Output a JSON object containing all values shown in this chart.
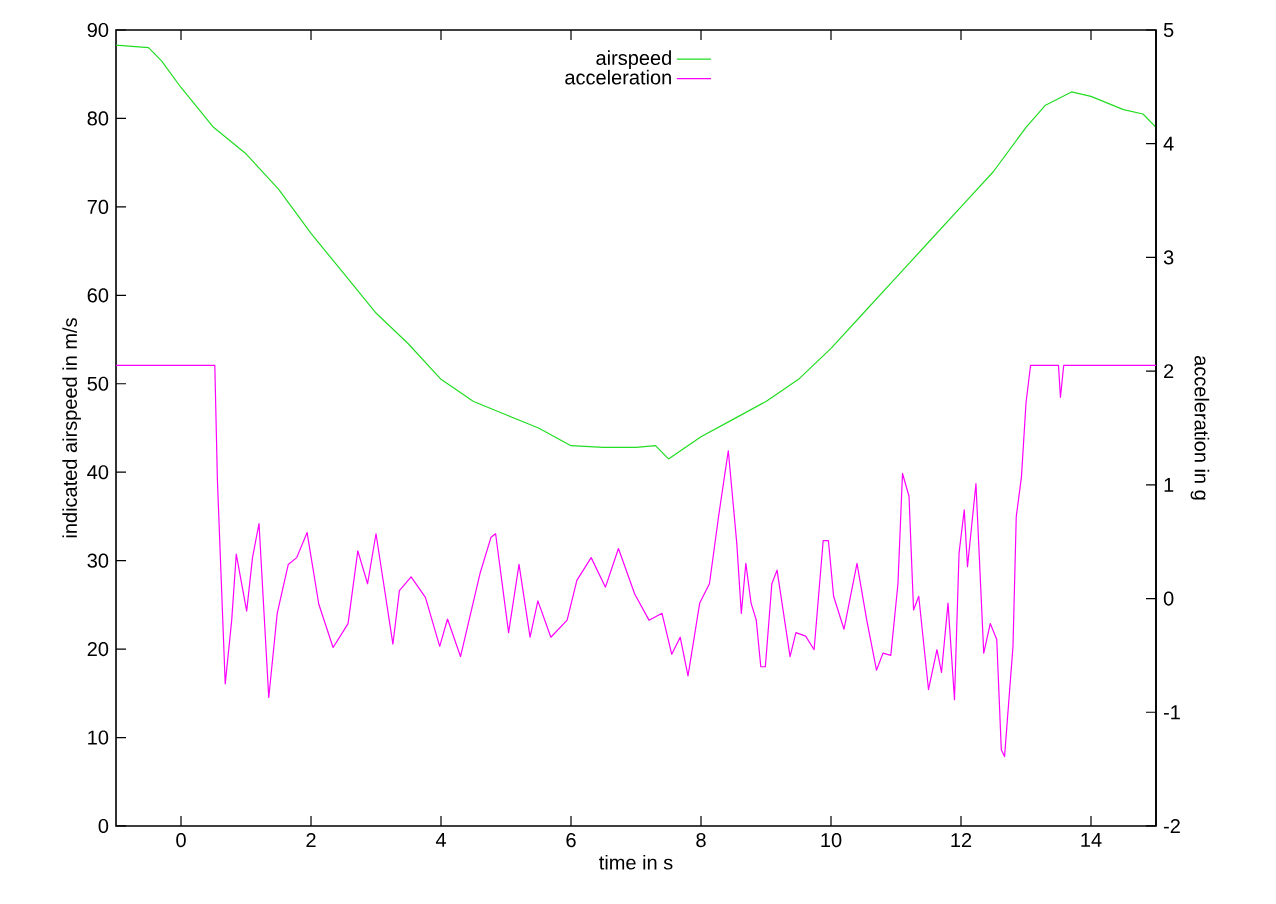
{
  "chart_data": {
    "type": "line",
    "xlabel": "time in s",
    "ylabel": "indicated airspeed in m/s",
    "y2label": "acceleration in g",
    "xlim": [
      -1,
      15
    ],
    "xticks": [
      0,
      2,
      4,
      6,
      8,
      10,
      12,
      14
    ],
    "ylim": [
      0,
      90
    ],
    "yticks": [
      0,
      10,
      20,
      30,
      40,
      50,
      60,
      70,
      80,
      90
    ],
    "y2lim": [
      -2,
      5
    ],
    "y2ticks": [
      -2,
      -1,
      0,
      1,
      2,
      3,
      4,
      5
    ],
    "legend": "top",
    "grid": false,
    "marker": "none",
    "series": [
      {
        "name": "airspeed",
        "color": "#22dd22",
        "x": [
          -1,
          -0.5,
          -0.3,
          0,
          0.5,
          1,
          1.5,
          2,
          2.5,
          3,
          3.5,
          4,
          4.5,
          5,
          5.5,
          6,
          6.5,
          7,
          7.3,
          7.5,
          7.8,
          8,
          8.5,
          9,
          9.5,
          10,
          10.5,
          11,
          11.5,
          12,
          12.5,
          13,
          13.3,
          13.7,
          14,
          14.5,
          14.8,
          15
        ],
        "values": [
          88.3,
          88,
          86.5,
          83.5,
          79,
          76,
          72,
          67,
          62.5,
          58,
          54.5,
          50.5,
          48,
          46.5,
          45,
          43,
          42.8,
          42.8,
          43,
          41.5,
          43,
          44,
          46,
          48,
          50.5,
          54,
          58,
          62,
          66,
          70,
          74,
          79,
          81.5,
          83,
          82.5,
          81,
          80.5,
          79
        ]
      },
      {
        "name": "acceleration",
        "color": "#ff00ff",
        "axis": "y2",
        "x": [
          -1,
          0.52,
          0.56,
          0.68,
          0.78,
          0.85,
          1.01,
          1.1,
          1.2,
          1.35,
          1.48,
          1.65,
          1.78,
          1.94,
          2.12,
          2.34,
          2.57,
          2.72,
          2.87,
          3.0,
          3.26,
          3.36,
          3.54,
          3.76,
          3.98,
          4.1,
          4.3,
          4.6,
          4.77,
          4.84,
          5.04,
          5.2,
          5.37,
          5.49,
          5.69,
          5.94,
          6.09,
          6.31,
          6.53,
          6.73,
          6.98,
          7.2,
          7.4,
          7.55,
          7.68,
          7.8,
          7.98,
          8.13,
          8.27,
          8.36,
          8.42,
          8.55,
          8.62,
          8.69,
          8.77,
          8.85,
          8.92,
          8.99,
          9.09,
          9.17,
          9.37,
          9.46,
          9.61,
          9.74,
          9.88,
          9.96,
          10.04,
          10.2,
          10.4,
          10.55,
          10.7,
          10.8,
          10.92,
          11.03,
          11.1,
          11.2,
          11.27,
          11.35,
          11.5,
          11.63,
          11.7,
          11.8,
          11.9,
          11.97,
          12.05,
          12.1,
          12.23,
          12.35,
          12.45,
          12.55,
          12.62,
          12.67,
          12.8,
          12.85,
          12.93,
          13.0,
          13.07,
          13.5,
          13.53,
          13.58,
          15
        ],
        "values": [
          2.05,
          2.05,
          1.04,
          -0.75,
          -0.19,
          0.39,
          -0.11,
          0.36,
          0.66,
          -0.87,
          -0.13,
          0.3,
          0.36,
          0.58,
          -0.05,
          -0.43,
          -0.22,
          0.42,
          0.13,
          0.57,
          -0.4,
          0.07,
          0.19,
          0.01,
          -0.42,
          -0.18,
          -0.51,
          0.22,
          0.54,
          0.57,
          -0.3,
          0.3,
          -0.34,
          -0.02,
          -0.34,
          -0.19,
          0.16,
          0.36,
          0.1,
          0.44,
          0.04,
          -0.19,
          -0.13,
          -0.49,
          -0.34,
          -0.68,
          -0.04,
          0.13,
          0.72,
          1.07,
          1.3,
          0.49,
          -0.13,
          0.31,
          -0.04,
          -0.19,
          -0.6,
          -0.6,
          0.13,
          0.25,
          -0.51,
          -0.3,
          -0.33,
          -0.45,
          0.51,
          0.51,
          0.02,
          -0.27,
          0.31,
          -0.19,
          -0.63,
          -0.48,
          -0.5,
          0.13,
          1.1,
          0.9,
          -0.1,
          0.02,
          -0.8,
          -0.45,
          -0.65,
          -0.04,
          -0.89,
          0.4,
          0.78,
          0.28,
          1.01,
          -0.48,
          -0.22,
          -0.36,
          -1.33,
          -1.39,
          -0.42,
          0.72,
          1.07,
          1.72,
          2.05,
          2.05,
          1.77,
          2.05,
          2.05
        ]
      }
    ]
  }
}
